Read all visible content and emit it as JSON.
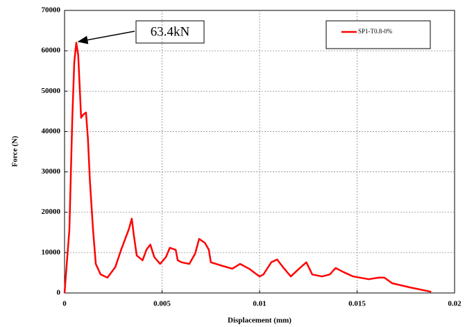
{
  "chart_data": {
    "type": "line",
    "xlabel": "Displacement (mm)",
    "ylabel": "Force (N)",
    "annotation": "63.4kN",
    "legend": "upper right",
    "grid": true,
    "xlim": [
      0,
      0.02
    ],
    "xticks": [
      0,
      0.005,
      0.01,
      0.015,
      0.02
    ],
    "ylim": [
      0,
      70000
    ],
    "yticks": [
      0,
      10000,
      20000,
      30000,
      40000,
      50000,
      60000,
      70000
    ],
    "x": [
      0,
      0.00025,
      0.0004,
      0.0005,
      0.0006,
      0.0007,
      0.00085,
      0.00096,
      0.0011,
      0.0012,
      0.0013,
      0.00146,
      0.0016,
      0.00185,
      0.0022,
      0.0026,
      0.0029,
      0.0033,
      0.00345,
      0.00356,
      0.0037,
      0.004,
      0.0042,
      0.0044,
      0.0046,
      0.0049,
      0.0052,
      0.0054,
      0.0057,
      0.0058,
      0.006,
      0.0064,
      0.0067,
      0.0069,
      0.0072,
      0.0074,
      0.0075,
      0.0081,
      0.0086,
      0.009,
      0.0095,
      0.01,
      0.0102,
      0.0106,
      0.0109,
      0.0112,
      0.0116,
      0.012,
      0.0124,
      0.0127,
      0.0132,
      0.0136,
      0.0139,
      0.0143,
      0.0148,
      0.0156,
      0.0161,
      0.0164,
      0.0168,
      0.0177,
      0.0188
    ],
    "series": [
      {
        "name": "SP1-T0.8-0%",
        "color": "#ff0000",
        "values": [
          0,
          15800,
          43400,
          57100,
          62000,
          58900,
          43400,
          44200,
          44700,
          38200,
          27900,
          15800,
          7200,
          4600,
          3800,
          6400,
          10700,
          15800,
          18400,
          14100,
          9300,
          8100,
          10700,
          12000,
          8900,
          7200,
          8900,
          11200,
          10700,
          8100,
          7600,
          7200,
          9800,
          13400,
          12400,
          10700,
          7600,
          6700,
          6000,
          7200,
          5900,
          4100,
          4600,
          7600,
          8300,
          6400,
          4100,
          5900,
          7600,
          4600,
          4100,
          4600,
          6200,
          5200,
          4100,
          3400,
          3800,
          3800,
          2400,
          1400,
          300
        ]
      }
    ]
  }
}
